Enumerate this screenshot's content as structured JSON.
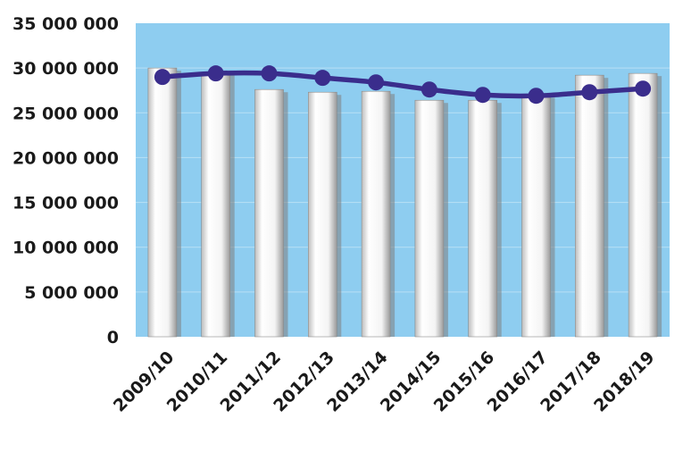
{
  "chart_data": {
    "type": "bar",
    "categories": [
      "2009/10",
      "2010/11",
      "2011/12",
      "2012/13",
      "2013/14",
      "2014/15",
      "2015/16",
      "2016/17",
      "2017/18",
      "2018/19"
    ],
    "series": [
      {
        "type": "bar",
        "values": [
          30000000,
          29500000,
          27600000,
          27300000,
          27400000,
          26400000,
          26400000,
          27000000,
          29200000,
          29400000
        ]
      },
      {
        "type": "line",
        "values": [
          29000000,
          29400000,
          29400000,
          28900000,
          28400000,
          27600000,
          27000000,
          26900000,
          27300000,
          27700000
        ]
      }
    ],
    "ylim": [
      0,
      35000000
    ],
    "yticks": [
      0,
      5000000,
      10000000,
      15000000,
      20000000,
      25000000,
      30000000,
      35000000
    ],
    "ytick_labels": [
      "0",
      "5 000 000",
      "10 000 000",
      "15 000 000",
      "20 000 000",
      "25 000 000",
      "30 000 000",
      "35 000 000"
    ],
    "grid": true,
    "colors": {
      "plot_background": "#8ecdf0",
      "bar_fill": "#f2f2f2",
      "bar_shadow": "#808080",
      "line": "#3a2d8c",
      "marker": "#3a2d8c",
      "gridline": "#b8e0f5"
    }
  }
}
